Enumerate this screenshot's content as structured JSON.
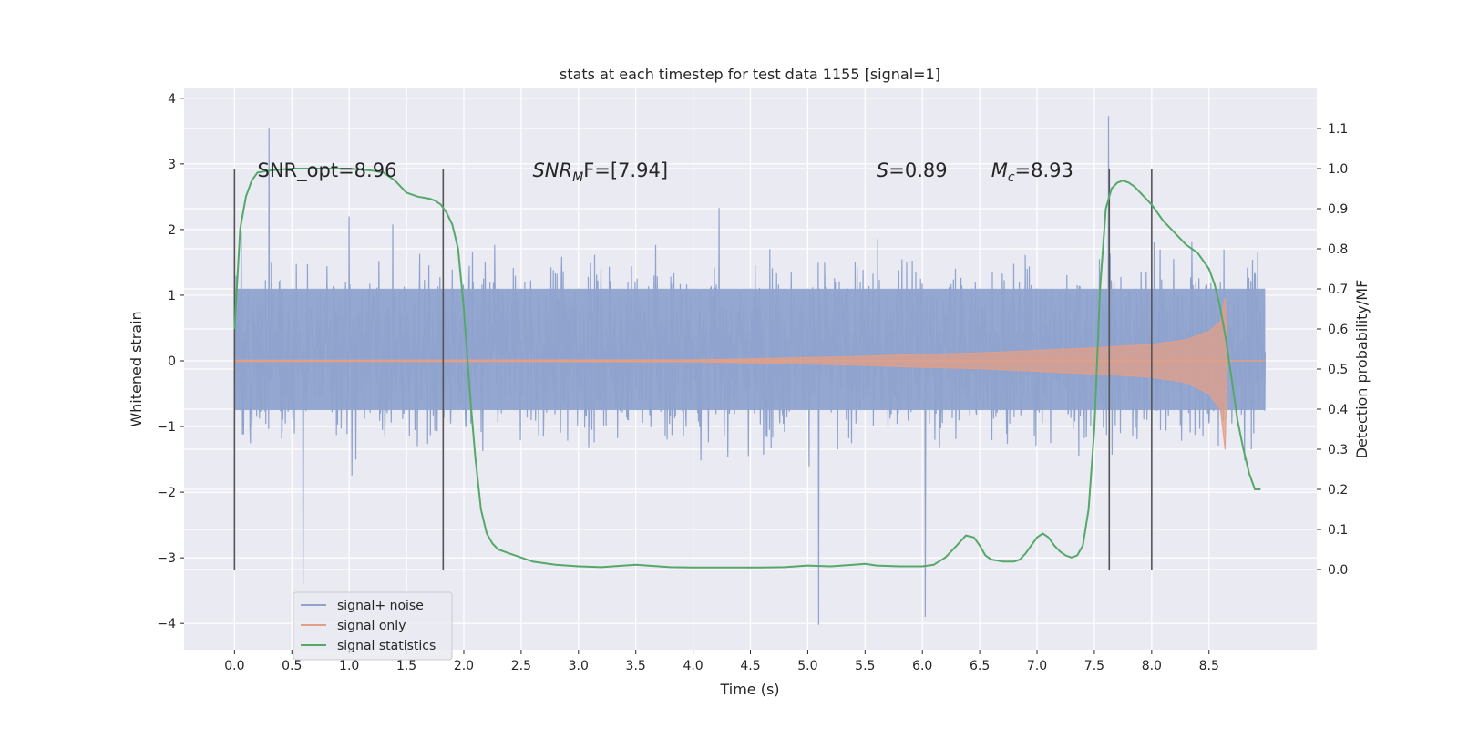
{
  "chart_data": {
    "type": "line",
    "title": "stats at each timestep for test data 1155 [signal=1]",
    "xlabel": "Time (s)",
    "ylabel": "Whitened strain",
    "y2label": "Detection probability/MF",
    "xlim": [
      -0.44,
      9.44
    ],
    "ylim": [
      -4.4,
      4.15
    ],
    "y2lim": [
      -0.2,
      1.2
    ],
    "x_ticks": [
      0.0,
      0.5,
      1.0,
      1.5,
      2.0,
      2.5,
      3.0,
      3.5,
      4.0,
      4.5,
      5.0,
      5.5,
      6.0,
      6.5,
      7.0,
      7.5,
      8.0,
      8.5
    ],
    "x_tick_labels": [
      "0.0",
      "0.5",
      "1.0",
      "1.5",
      "2.0",
      "2.5",
      "3.0",
      "3.5",
      "4.0",
      "4.5",
      "5.0",
      "5.5",
      "6.0",
      "6.5",
      "7.0",
      "7.5",
      "8.0",
      "8.5"
    ],
    "y_ticks": [
      -4,
      -3,
      -2,
      -1,
      0,
      1,
      2,
      3,
      4
    ],
    "y_tick_labels": [
      "−4",
      "−3",
      "−2",
      "−1",
      "0",
      "1",
      "2",
      "3",
      "4"
    ],
    "y2_ticks": [
      0.0,
      0.1,
      0.2,
      0.3,
      0.4,
      0.5,
      0.6,
      0.7,
      0.8,
      0.9,
      1.0,
      1.1
    ],
    "y2_tick_labels": [
      "0.0",
      "0.1",
      "0.2",
      "0.3",
      "0.4",
      "0.5",
      "0.6",
      "0.7",
      "0.8",
      "0.9",
      "1.0",
      "1.1"
    ],
    "grid": true,
    "legend_position": "bottom-left",
    "series": [
      {
        "name": "signal+ noise",
        "color": "#8fa3cd",
        "axis": "left",
        "t_range": [
          0.0,
          8.99
        ],
        "core_band": [
          -0.75,
          1.1
        ],
        "typical_peaks": [
          -2.2,
          2.4
        ],
        "max": 3.73,
        "min": -4.02
      },
      {
        "name": "signal only",
        "color": "#e39f86",
        "axis": "left",
        "envelope": {
          "x": [
            0.0,
            4.0,
            4.5,
            5.0,
            5.5,
            6.0,
            6.5,
            7.0,
            7.5,
            8.0,
            8.3,
            8.5,
            8.6,
            8.64,
            8.66,
            8.99
          ],
          "upper": [
            0.01,
            0.015,
            0.03,
            0.05,
            0.07,
            0.1,
            0.12,
            0.16,
            0.2,
            0.25,
            0.32,
            0.45,
            0.6,
            0.97,
            0.0,
            0.0
          ],
          "lower": [
            -0.01,
            -0.015,
            -0.03,
            -0.05,
            -0.07,
            -0.1,
            -0.12,
            -0.16,
            -0.2,
            -0.25,
            -0.33,
            -0.5,
            -0.75,
            -1.35,
            0.0,
            0.0
          ]
        }
      },
      {
        "name": "signal statistics",
        "color": "#55a868",
        "axis": "right",
        "x": [
          0.0,
          0.05,
          0.1,
          0.15,
          0.2,
          0.3,
          0.5,
          0.7,
          1.0,
          1.2,
          1.3,
          1.4,
          1.5,
          1.6,
          1.7,
          1.75,
          1.8,
          1.85,
          1.9,
          1.95,
          2.0,
          2.05,
          2.1,
          2.15,
          2.2,
          2.25,
          2.3,
          2.35,
          2.4,
          2.5,
          2.6,
          2.8,
          3.0,
          3.2,
          3.4,
          3.5,
          3.6,
          3.8,
          4.0,
          4.3,
          4.6,
          4.8,
          5.0,
          5.2,
          5.4,
          5.5,
          5.6,
          5.8,
          6.0,
          6.1,
          6.2,
          6.3,
          6.38,
          6.45,
          6.5,
          6.55,
          6.6,
          6.7,
          6.8,
          6.85,
          6.9,
          6.95,
          7.0,
          7.05,
          7.1,
          7.15,
          7.2,
          7.25,
          7.3,
          7.35,
          7.4,
          7.45,
          7.5,
          7.55,
          7.6,
          7.65,
          7.7,
          7.75,
          7.8,
          7.85,
          7.9,
          8.0,
          8.1,
          8.2,
          8.3,
          8.4,
          8.5,
          8.55,
          8.6,
          8.65,
          8.7,
          8.75,
          8.8,
          8.85,
          8.9,
          8.95
        ],
        "values": [
          0.6,
          0.85,
          0.93,
          0.97,
          0.99,
          0.995,
          1.0,
          1.0,
          1.0,
          0.995,
          0.99,
          0.97,
          0.94,
          0.93,
          0.925,
          0.92,
          0.91,
          0.89,
          0.86,
          0.8,
          0.65,
          0.45,
          0.28,
          0.15,
          0.09,
          0.065,
          0.05,
          0.045,
          0.04,
          0.03,
          0.02,
          0.012,
          0.008,
          0.006,
          0.01,
          0.012,
          0.01,
          0.006,
          0.005,
          0.005,
          0.005,
          0.006,
          0.01,
          0.008,
          0.012,
          0.014,
          0.01,
          0.008,
          0.008,
          0.012,
          0.03,
          0.06,
          0.085,
          0.08,
          0.06,
          0.035,
          0.025,
          0.02,
          0.02,
          0.025,
          0.04,
          0.06,
          0.08,
          0.09,
          0.08,
          0.06,
          0.045,
          0.035,
          0.03,
          0.035,
          0.06,
          0.15,
          0.35,
          0.7,
          0.9,
          0.95,
          0.965,
          0.97,
          0.965,
          0.955,
          0.94,
          0.91,
          0.87,
          0.84,
          0.81,
          0.79,
          0.75,
          0.71,
          0.65,
          0.57,
          0.47,
          0.37,
          0.3,
          0.24,
          0.2,
          0.2
        ]
      }
    ],
    "vertical_markers": [
      0.0,
      1.82,
      7.63,
      8.0
    ],
    "annotations": [
      {
        "id": "snr-opt",
        "x": 0.2,
        "y": 2.9,
        "prefix": "SNR_opt",
        "sub": "",
        "suffix": "=8.96",
        "italic": false
      },
      {
        "id": "snr-mf",
        "x": 2.6,
        "y": 2.9,
        "prefix": "SNR",
        "sub": "M",
        "suffix": "F=[7.94]",
        "italic": true
      },
      {
        "id": "s-stat",
        "x": 5.6,
        "y": 2.9,
        "prefix": "S",
        "sub": "",
        "suffix": "=0.89",
        "italic": true
      },
      {
        "id": "mc",
        "x": 6.6,
        "y": 2.9,
        "prefix": "M",
        "sub": "c",
        "suffix": "=8.93",
        "italic": true
      }
    ]
  }
}
